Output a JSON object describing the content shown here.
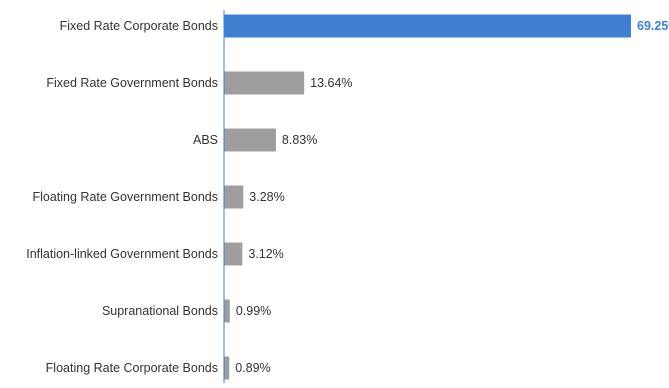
{
  "chart_data": {
    "type": "bar",
    "orientation": "horizontal",
    "categories": [
      "Fixed Rate Corporate Bonds",
      "Fixed Rate Government Bonds",
      "ABS",
      "Floating Rate Government Bonds",
      "Inflation-linked Government Bonds",
      "Supranational Bonds",
      "Floating Rate Corporate Bonds"
    ],
    "values": [
      69.25,
      13.64,
      8.83,
      3.28,
      3.12,
      0.99,
      0.89
    ],
    "value_labels": [
      "69.25%",
      "13.64%",
      "8.83%",
      "3.28%",
      "3.12%",
      "0.99%",
      "0.89%"
    ],
    "highlight_index": 0,
    "colors": {
      "highlight": "#3f7fcf",
      "bar": "#9e9e9e",
      "axis": "#3f7fcf"
    },
    "xlim": [
      0,
      69.25
    ],
    "grid": false,
    "legend": "none",
    "title": "",
    "xlabel": "",
    "ylabel": ""
  }
}
